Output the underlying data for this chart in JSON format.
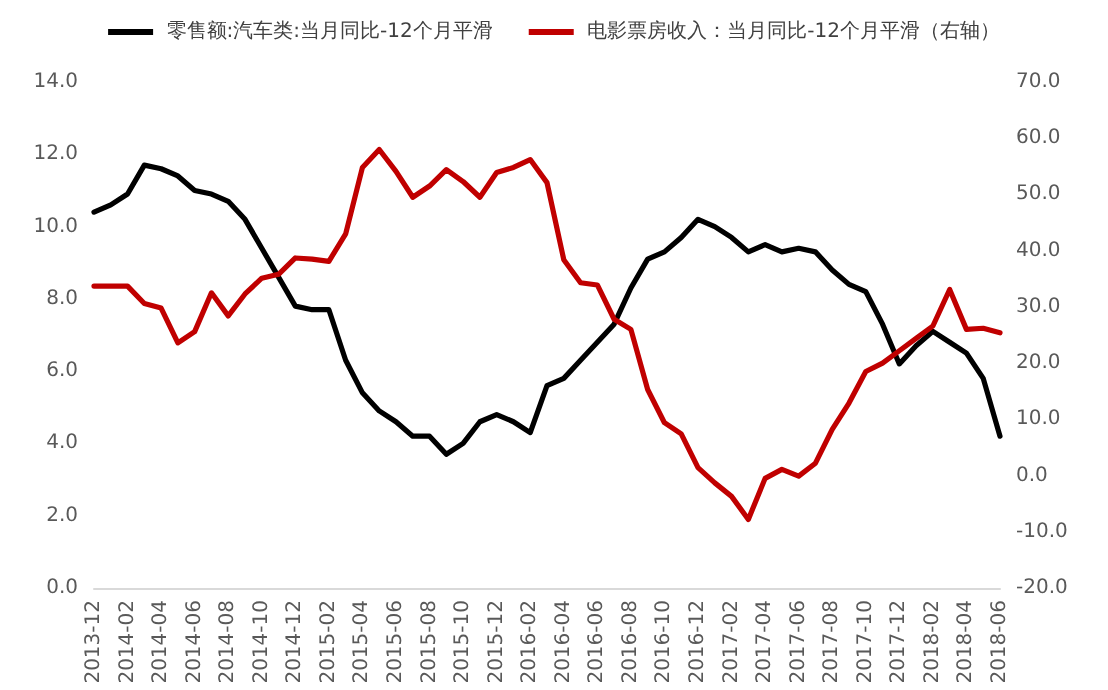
{
  "chart_data": {
    "type": "line",
    "categories": [
      "2013-12",
      null,
      "2014-02",
      null,
      "2014-04",
      null,
      "2014-06",
      null,
      "2014-08",
      null,
      "2014-10",
      null,
      "2014-12",
      null,
      "2015-02",
      null,
      "2015-04",
      null,
      "2015-06",
      null,
      "2015-08",
      null,
      "2015-10",
      null,
      "2015-12",
      null,
      "2016-02",
      null,
      "2016-04",
      null,
      "2016-06",
      null,
      "2016-08",
      null,
      "2016-10",
      null,
      "2016-12",
      null,
      "2017-02",
      null,
      "2017-04",
      null,
      "2017-06",
      null,
      "2017-08",
      null,
      "2017-10",
      null,
      "2017-12",
      null,
      "2018-02",
      null,
      "2018-04",
      null,
      "2018-06"
    ],
    "series": [
      {
        "name": "零售额:汽车类:当月同比-12个月平滑",
        "color": "#000000",
        "values": [
          10.4,
          10.6,
          10.9,
          11.7,
          11.6,
          11.4,
          11.0,
          10.9,
          10.7,
          10.2,
          9.4,
          8.6,
          7.8,
          7.7,
          7.7,
          6.3,
          5.4,
          4.9,
          4.6,
          4.2,
          4.2,
          3.7,
          4.0,
          4.6,
          4.8,
          4.6,
          4.3,
          5.6,
          5.8,
          6.3,
          6.8,
          7.3,
          8.3,
          9.1,
          9.3,
          9.7,
          10.2,
          10.0,
          9.7,
          9.3,
          9.5,
          9.3,
          9.4,
          9.3,
          8.8,
          8.4,
          8.2,
          7.3,
          6.2,
          6.7,
          7.1,
          6.8,
          6.5,
          5.8,
          4.2
        ]
      },
      {
        "name": "电影票房收入：当月同比-12个月平滑（右轴）",
        "color": "#c00000",
        "axis": "y2",
        "values": [
          33.7,
          33.7,
          33.7,
          30.6,
          29.8,
          23.6,
          25.6,
          32.5,
          28.4,
          32.3,
          35.1,
          35.8,
          38.7,
          38.5,
          38.1,
          43.0,
          54.8,
          58.0,
          54.1,
          49.5,
          51.5,
          54.4,
          52.3,
          49.5,
          53.9,
          54.8,
          56.2,
          52.1,
          38.4,
          34.3,
          33.9,
          27.8,
          26.0,
          15.3,
          9.4,
          7.4,
          1.4,
          -1.3,
          -3.7,
          -7.8,
          -0.5,
          1.1,
          -0.1,
          2.2,
          8.2,
          12.9,
          18.5,
          20.0,
          22.2,
          24.4,
          26.6,
          33.1,
          26.0,
          26.2,
          25.4
        ]
      }
    ],
    "ylim": [
      0,
      14
    ],
    "yticks": [
      {
        "value": 0,
        "label": "0.0"
      },
      {
        "value": 2,
        "label": "2.0"
      },
      {
        "value": 4,
        "label": "4.0"
      },
      {
        "value": 6,
        "label": "6.0"
      },
      {
        "value": 8,
        "label": "8.0"
      },
      {
        "value": 10,
        "label": "10.0"
      },
      {
        "value": 12,
        "label": "12.0"
      },
      {
        "value": 14,
        "label": "14.0"
      }
    ],
    "y2lim": [
      -20,
      70
    ],
    "y2ticks": [
      {
        "value": -20,
        "label": "-20.0"
      },
      {
        "value": -10,
        "label": "-10.0"
      },
      {
        "value": 0,
        "label": "0.0"
      },
      {
        "value": 10,
        "label": "10.0"
      },
      {
        "value": 20,
        "label": "20.0"
      },
      {
        "value": 30,
        "label": "30.0"
      },
      {
        "value": 40,
        "label": "40.0"
      },
      {
        "value": 50,
        "label": "50.0"
      },
      {
        "value": 60,
        "label": "60.0"
      },
      {
        "value": 70,
        "label": "70.0"
      }
    ],
    "grid": false,
    "legend": "top",
    "marker": "none",
    "line_style": "solid"
  }
}
